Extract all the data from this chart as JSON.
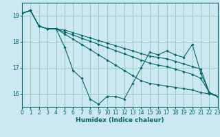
{
  "xlabel": "Humidex (Indice chaleur)",
  "bg_color": "#cce8f0",
  "grid_color": "#99ccbb",
  "line_color": "#006666",
  "xlim": [
    0,
    23
  ],
  "ylim": [
    15.5,
    19.5
  ],
  "xticks": [
    0,
    1,
    2,
    3,
    4,
    5,
    6,
    7,
    8,
    9,
    10,
    11,
    12,
    13,
    14,
    15,
    16,
    17,
    18,
    19,
    20,
    21,
    22,
    23
  ],
  "yticks": [
    16,
    17,
    18,
    19
  ],
  "series": [
    [
      19.1,
      19.2,
      18.6,
      18.5,
      18.5,
      17.8,
      16.9,
      16.6,
      15.8,
      15.6,
      15.9,
      15.9,
      15.8,
      16.4,
      17.0,
      17.6,
      17.5,
      17.65,
      17.5,
      17.4,
      17.9,
      16.8,
      16.05,
      15.9
    ],
    [
      19.1,
      19.2,
      18.6,
      18.5,
      18.5,
      18.45,
      18.35,
      18.25,
      18.15,
      18.05,
      17.95,
      17.85,
      17.75,
      17.65,
      17.55,
      17.45,
      17.4,
      17.35,
      17.25,
      17.15,
      17.05,
      16.95,
      16.05,
      15.9
    ],
    [
      19.1,
      19.2,
      18.6,
      18.5,
      18.5,
      18.3,
      18.1,
      17.9,
      17.7,
      17.5,
      17.3,
      17.1,
      16.9,
      16.7,
      16.5,
      16.4,
      16.35,
      16.3,
      16.25,
      16.2,
      16.15,
      16.05,
      16.0,
      15.9
    ],
    [
      19.1,
      19.2,
      18.6,
      18.5,
      18.5,
      18.38,
      18.26,
      18.14,
      18.02,
      17.9,
      17.78,
      17.66,
      17.54,
      17.42,
      17.3,
      17.18,
      17.1,
      17.05,
      16.95,
      16.85,
      16.75,
      16.6,
      16.05,
      15.9
    ]
  ]
}
